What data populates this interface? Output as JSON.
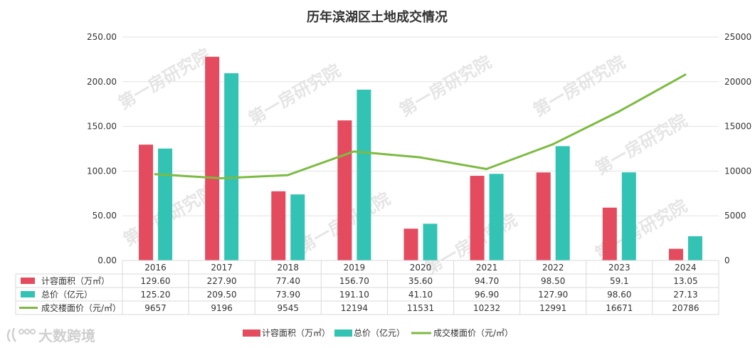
{
  "chart_data": {
    "type": "bar",
    "title": "历年滨湖区土地成交情况",
    "categories": [
      "2016",
      "2017",
      "2018",
      "2019",
      "2020",
      "2021",
      "2022",
      "2023",
      "2024"
    ],
    "y_left": {
      "ticks": [
        "0.00",
        "50.00",
        "100.00",
        "150.00",
        "200.00",
        "250.00"
      ],
      "range": [
        0,
        250
      ]
    },
    "y_right": {
      "ticks": [
        "0",
        "5000",
        "10000",
        "15000",
        "20000",
        "25000"
      ],
      "range": [
        0,
        25000
      ]
    },
    "series": [
      {
        "name": "计容面积（万㎡）",
        "type": "bar",
        "axis": "left",
        "color": "#e54b5f",
        "values": [
          129.6,
          227.9,
          77.4,
          156.7,
          35.6,
          94.7,
          98.5,
          59.1,
          13.05
        ],
        "labels": [
          "129.60",
          "227.90",
          "77.40",
          "156.70",
          "35.60",
          "94.70",
          "98.50",
          "59.1",
          "13.05"
        ]
      },
      {
        "name": "总价（亿元）",
        "type": "bar",
        "axis": "right_table_left",
        "color": "#33c3b4",
        "values": [
          125.2,
          209.5,
          73.9,
          191.1,
          41.1,
          96.9,
          127.9,
          98.6,
          27.13
        ],
        "labels": [
          "125.20",
          "209.50",
          "73.90",
          "191.10",
          "41.10",
          "96.90",
          "127.90",
          "98.60",
          "27.13"
        ]
      },
      {
        "name": "成交楼面价（元/㎡）",
        "type": "line",
        "axis": "right",
        "color": "#7dbb42",
        "values": [
          9657,
          9196,
          9545,
          12194,
          11531,
          10232,
          12991,
          16671,
          20786
        ],
        "labels": [
          "9657",
          "9196",
          "9545",
          "12194",
          "11531",
          "10232",
          "12991",
          "16671",
          "20786"
        ]
      }
    ],
    "grid": true,
    "legend_position": "bottom",
    "data_table": true
  },
  "watermark": "第一房研究院",
  "brand_logo": "大数跨境"
}
